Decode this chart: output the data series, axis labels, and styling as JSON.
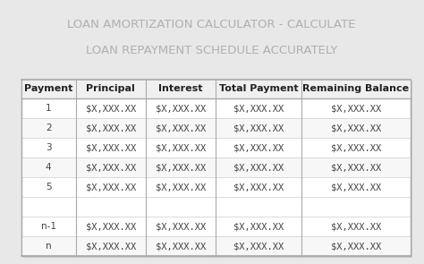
{
  "title_line1": "LOAN AMORTIZATION CALCULATOR - CALCULATE",
  "title_line2": "LOAN REPAYMENT SCHEDULE ACCURATELY",
  "title_color": "#b0b0b0",
  "title_fontsize": 9.5,
  "bg_color": "#e8e8e8",
  "table_bg": "#ffffff",
  "table_border_color": "#aaaaaa",
  "header_labels": [
    "Payment",
    "Principal",
    "Interest",
    "Total Payment",
    "Remaining Balance"
  ],
  "header_fontsize": 8,
  "header_bold": true,
  "header_bg": "#f0f0f0",
  "data_rows": [
    [
      "1",
      "$X,XXX.XX",
      "$X,XXX.XX",
      "$X,XXX.XX",
      "$X,XXX.XX"
    ],
    [
      "2",
      "$X,XXX.XX",
      "$X,XXX.XX",
      "$X,XXX.XX",
      "$X,XXX.XX"
    ],
    [
      "3",
      "$X,XXX.XX",
      "$X,XXX.XX",
      "$X,XXX.XX",
      "$X,XXX.XX"
    ],
    [
      "4",
      "$X,XXX.XX",
      "$X,XXX.XX",
      "$X,XXX.XX",
      "$X,XXX.XX"
    ],
    [
      "5",
      "$X,XXX.XX",
      "$X,XXX.XX",
      "$X,XXX.XX",
      "$X,XXX.XX"
    ],
    [
      "",
      "",
      "",
      "",
      ""
    ],
    [
      "n-1",
      "$X,XXX.XX",
      "$X,XXX.XX",
      "$X,XXX.XX",
      "$X,XXX.XX"
    ],
    [
      "n",
      "$X,XXX.XX",
      "$X,XXX.XX",
      "$X,XXX.XX",
      "$X,XXX.XX"
    ]
  ],
  "data_fontsize": 7.5,
  "row_colors": [
    "#ffffff",
    "#f5f5f5"
  ],
  "cell_text_color": "#444444",
  "shadow_color": "#cccccc"
}
